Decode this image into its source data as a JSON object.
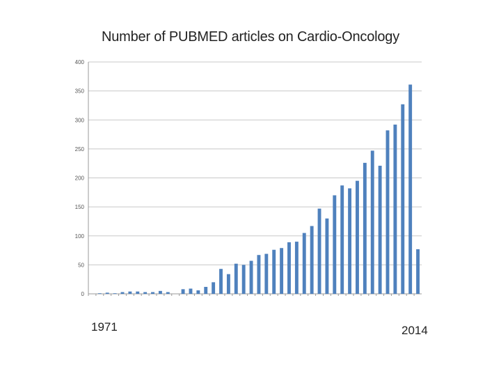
{
  "chart_data": {
    "type": "bar",
    "title": "Number of PUBMED articles on Cardio-Oncology",
    "xlabel": "",
    "ylabel": "",
    "ylim": [
      0,
      400
    ],
    "y_ticks": [
      0,
      50,
      100,
      150,
      200,
      250,
      300,
      350,
      400
    ],
    "y_tick_labels": [
      "0",
      "50",
      "100",
      "150",
      "200",
      "250",
      "300",
      "350",
      "400"
    ],
    "grid": true,
    "color": "#4f81bd",
    "start_label": "1971",
    "end_label": "2014",
    "categories": [
      "1971",
      "1972",
      "1973",
      "1974",
      "1975",
      "1976",
      "1977",
      "1978",
      "1979",
      "1980",
      "1981",
      "1982",
      "1983",
      "1984",
      "1985",
      "1986",
      "1987",
      "1988",
      "1989",
      "1990",
      "1991",
      "1992",
      "1993",
      "1994",
      "1995",
      "1996",
      "1997",
      "1998",
      "1999",
      "2000",
      "2001",
      "2002",
      "2003",
      "2004",
      "2005",
      "2006",
      "2007",
      "2008",
      "2009",
      "2010",
      "2011",
      "2012",
      "2013",
      "2014"
    ],
    "values": [
      0,
      1,
      2,
      1,
      3,
      4,
      4,
      3,
      3,
      5,
      3,
      0,
      8,
      9,
      6,
      12,
      20,
      43,
      34,
      52,
      50,
      57,
      67,
      69,
      76,
      79,
      89,
      90,
      105,
      117,
      147,
      130,
      170,
      187,
      182,
      195,
      226,
      247,
      221,
      282,
      292,
      327,
      361,
      77
    ]
  }
}
